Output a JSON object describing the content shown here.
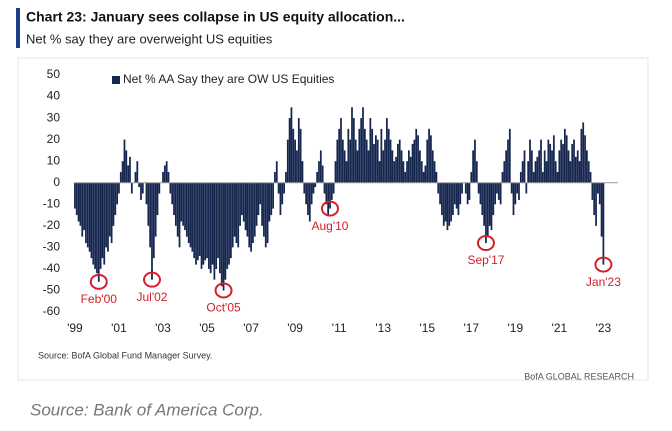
{
  "chart_data": {
    "type": "bar",
    "title": "Chart 23: January sees collapse in US equity allocation...",
    "subtitle": "Net % say they are overweight US equities",
    "source": "Source: BofA Global Fund Manager Survey.",
    "brand": "BofA GLOBAL RESEARCH",
    "caption": "Source: Bank of America Corp.",
    "color": "#15264f",
    "annotation_color": "#d3202a",
    "annotations": [
      "Feb'00",
      "Jul'02",
      "Oct'05",
      "Aug'10",
      "Sep'17",
      "Jan'23"
    ],
    "ylim": [
      -60,
      50
    ],
    "yticks": [
      -60,
      -50,
      -40,
      -30,
      -20,
      -10,
      0,
      10,
      20,
      30,
      40,
      50
    ],
    "categories": [
      "'99",
      null,
      null,
      null,
      null,
      null,
      null,
      null,
      null,
      null,
      null,
      null,
      null,
      null,
      null,
      null,
      null,
      null,
      null,
      null,
      null,
      null,
      null,
      null,
      "'01",
      null,
      null,
      null,
      null,
      null,
      null,
      null,
      null,
      null,
      null,
      null,
      null,
      null,
      null,
      null,
      null,
      null,
      null,
      null,
      null,
      null,
      null,
      null,
      "'03",
      null,
      null,
      null,
      null,
      null,
      null,
      null,
      null,
      null,
      null,
      null,
      null,
      null,
      null,
      null,
      null,
      null,
      null,
      null,
      null,
      null,
      null,
      null,
      "'05",
      null,
      null,
      null,
      null,
      null,
      null,
      null,
      null,
      null,
      null,
      null,
      null,
      null,
      null,
      null,
      null,
      null,
      null,
      null,
      null,
      null,
      null,
      null,
      "'07",
      null,
      null,
      null,
      null,
      null,
      null,
      null,
      null,
      null,
      null,
      null,
      null,
      null,
      null,
      null,
      null,
      null,
      null,
      null,
      null,
      null,
      null,
      null,
      "'09",
      null,
      null,
      null,
      null,
      null,
      null,
      null,
      null,
      null,
      null,
      null,
      null,
      null,
      null,
      null,
      null,
      null,
      null,
      null,
      null,
      null,
      null,
      null,
      "'11",
      null,
      null,
      null,
      null,
      null,
      null,
      null,
      null,
      null,
      null,
      null,
      null,
      null,
      null,
      null,
      null,
      null,
      null,
      null,
      null,
      null,
      null,
      null,
      "'13",
      null,
      null,
      null,
      null,
      null,
      null,
      null,
      null,
      null,
      null,
      null,
      null,
      null,
      null,
      null,
      null,
      null,
      null,
      null,
      null,
      null,
      null,
      null,
      "'15",
      null,
      null,
      null,
      null,
      null,
      null,
      null,
      null,
      null,
      null,
      null,
      null,
      null,
      null,
      null,
      null,
      null,
      null,
      null,
      null,
      null,
      null,
      null,
      "'17",
      null,
      null,
      null,
      null,
      null,
      null,
      null,
      null,
      null,
      null,
      null,
      null,
      null,
      null,
      null,
      null,
      null,
      null,
      null,
      null,
      null,
      null,
      null,
      "'19",
      null,
      null,
      null,
      null,
      null,
      null,
      null,
      null,
      null,
      null,
      null,
      null,
      null,
      null,
      null,
      null,
      null,
      null,
      null,
      null,
      null,
      null,
      null,
      "'21",
      null,
      null,
      null,
      null,
      null,
      null,
      null,
      null,
      null,
      null,
      null,
      null,
      null,
      null,
      null,
      null,
      null,
      null,
      null,
      null,
      null,
      null,
      null,
      "'23"
    ],
    "series": [
      {
        "name": "Net % AA Say they are OW US Equities",
        "color": "#15264f",
        "values": [
          -12,
          -15,
          -18,
          -20,
          -25,
          -22,
          -28,
          -30,
          -32,
          -35,
          -38,
          -40,
          -42,
          -46,
          -40,
          -35,
          -38,
          -30,
          -32,
          -25,
          -28,
          -20,
          -15,
          -10,
          -5,
          5,
          10,
          20,
          15,
          8,
          12,
          -5,
          0,
          5,
          10,
          -2,
          -8,
          -5,
          0,
          -10,
          -20,
          -30,
          -45,
          -35,
          -25,
          -15,
          -5,
          0,
          5,
          8,
          10,
          5,
          -5,
          -10,
          -15,
          -20,
          -25,
          -30,
          -18,
          -20,
          -22,
          -25,
          -28,
          -30,
          -32,
          -35,
          -38,
          -36,
          -34,
          -40,
          -38,
          -36,
          -35,
          -40,
          -42,
          -38,
          -45,
          -40,
          -35,
          -42,
          -48,
          -50,
          -45,
          -40,
          -38,
          -35,
          -30,
          -25,
          -28,
          -30,
          -20,
          -15,
          -18,
          -22,
          -25,
          -30,
          -32,
          -28,
          -25,
          -20,
          -15,
          -10,
          -20,
          -25,
          -30,
          -28,
          -18,
          -15,
          -12,
          5,
          10,
          -5,
          -15,
          -10,
          -5,
          5,
          20,
          30,
          35,
          25,
          20,
          15,
          30,
          25,
          10,
          -5,
          -10,
          -15,
          -18,
          -10,
          -5,
          -2,
          5,
          10,
          15,
          8,
          -5,
          -10,
          -15,
          -12,
          -8,
          -5,
          10,
          20,
          25,
          30,
          20,
          15,
          10,
          25,
          20,
          35,
          30,
          20,
          15,
          25,
          30,
          35,
          25,
          20,
          15,
          30,
          25,
          18,
          22,
          20,
          10,
          25,
          15,
          20,
          30,
          25,
          20,
          15,
          10,
          12,
          18,
          20,
          15,
          10,
          5,
          10,
          15,
          12,
          18,
          20,
          25,
          22,
          15,
          10,
          5,
          8,
          20,
          25,
          22,
          15,
          10,
          5,
          -5,
          -10,
          -15,
          -20,
          -18,
          -22,
          -20,
          -18,
          -15,
          -10,
          -12,
          -15,
          -10,
          -5,
          0,
          -5,
          -10,
          -8,
          5,
          15,
          20,
          10,
          -5,
          -10,
          -15,
          -20,
          -28,
          -25,
          -20,
          -22,
          -15,
          -10,
          -5,
          -8,
          -10,
          5,
          10,
          15,
          20,
          25,
          -5,
          -15,
          -10,
          -5,
          -8,
          5,
          10,
          15,
          -5,
          10,
          20,
          15,
          5,
          10,
          12,
          15,
          20,
          5,
          15,
          10,
          20,
          18,
          15,
          22,
          10,
          5,
          15,
          20,
          18,
          25,
          22,
          15,
          10,
          18,
          20,
          12,
          15,
          10,
          25,
          28,
          22,
          15,
          10,
          5,
          -8,
          -15,
          -20,
          -5,
          -10,
          -25,
          -38
        ]
      }
    ]
  }
}
